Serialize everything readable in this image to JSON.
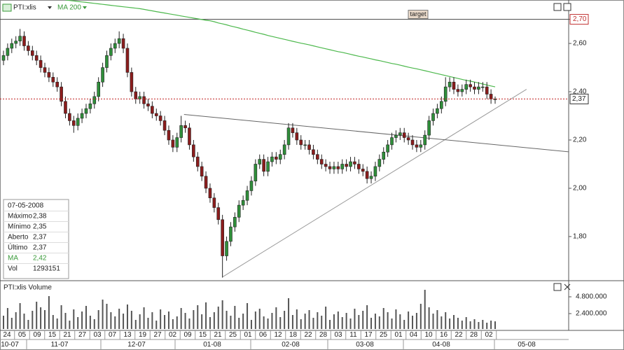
{
  "chart_data": {
    "type": "candlestick",
    "header": {
      "symbol": "PTI:xlis",
      "indicator": "MA 200"
    },
    "ylim": [
      1.62,
      2.78
    ],
    "yticks": [
      {
        "value": 2.7,
        "label": "2,70"
      },
      {
        "value": 2.6,
        "label": "2,60"
      },
      {
        "value": 2.4,
        "label": "2,40"
      },
      {
        "value": 2.2,
        "label": "2,20"
      },
      {
        "value": 2.0,
        "label": "2,00"
      },
      {
        "value": 1.8,
        "label": "1,80"
      }
    ],
    "target": {
      "label": "target",
      "value": 2.7
    },
    "price_marker": {
      "value": 2.37,
      "label": "2,37"
    },
    "up_color": "#2f8f3a",
    "down_color": "#8c1c1c",
    "open": [
      2.53,
      2.55,
      2.58,
      2.6,
      2.61,
      2.63,
      2.59,
      2.57,
      2.55,
      2.53,
      2.5,
      2.48,
      2.46,
      2.44,
      2.42,
      2.36,
      2.31,
      2.28,
      2.26,
      2.29,
      2.31,
      2.33,
      2.35,
      2.38,
      2.44,
      2.5,
      2.55,
      2.58,
      2.6,
      2.62,
      2.58,
      2.48,
      2.4,
      2.37,
      2.38,
      2.35,
      2.34,
      2.31,
      2.3,
      2.28,
      2.24,
      2.2,
      2.17,
      2.21,
      2.26,
      2.25,
      2.18,
      2.13,
      2.09,
      2.05,
      2.0,
      1.96,
      1.92,
      1.87,
      1.72,
      1.78,
      1.84,
      1.88,
      1.93,
      1.95,
      1.99,
      2.03,
      2.1,
      2.12,
      2.07,
      2.11,
      2.13,
      2.12,
      2.14,
      2.18,
      2.25,
      2.23,
      2.2,
      2.18,
      2.18,
      2.16,
      2.14,
      2.12,
      2.1,
      2.09,
      2.08,
      2.09,
      2.08,
      2.1,
      2.09,
      2.11,
      2.1,
      2.08,
      2.07,
      2.04,
      2.05,
      2.09,
      2.12,
      2.15,
      2.18,
      2.21,
      2.22,
      2.23,
      2.21,
      2.2,
      2.18,
      2.17,
      2.18,
      2.22,
      2.28,
      2.31,
      2.33,
      2.36,
      2.42,
      2.44,
      2.41,
      2.4,
      2.41,
      2.43,
      2.42,
      2.41,
      2.42,
      2.42,
      2.39,
      2.37
    ],
    "high": [
      2.57,
      2.6,
      2.62,
      2.63,
      2.66,
      2.65,
      2.61,
      2.59,
      2.57,
      2.55,
      2.52,
      2.5,
      2.48,
      2.46,
      2.44,
      2.38,
      2.33,
      2.3,
      2.31,
      2.33,
      2.35,
      2.37,
      2.4,
      2.46,
      2.52,
      2.57,
      2.6,
      2.62,
      2.65,
      2.64,
      2.6,
      2.5,
      2.42,
      2.4,
      2.4,
      2.37,
      2.36,
      2.33,
      2.32,
      2.3,
      2.26,
      2.22,
      2.23,
      2.3,
      2.28,
      2.27,
      2.2,
      2.15,
      2.11,
      2.07,
      2.02,
      1.98,
      1.94,
      1.89,
      1.8,
      1.86,
      1.9,
      1.95,
      1.97,
      2.01,
      2.05,
      2.12,
      2.14,
      2.14,
      2.13,
      2.15,
      2.15,
      2.16,
      2.2,
      2.27,
      2.27,
      2.25,
      2.22,
      2.2,
      2.2,
      2.18,
      2.16,
      2.14,
      2.12,
      2.11,
      2.11,
      2.11,
      2.12,
      2.12,
      2.13,
      2.13,
      2.12,
      2.1,
      2.09,
      2.07,
      2.11,
      2.14,
      2.17,
      2.2,
      2.23,
      2.24,
      2.25,
      2.25,
      2.23,
      2.22,
      2.2,
      2.2,
      2.24,
      2.3,
      2.33,
      2.35,
      2.38,
      2.46,
      2.46,
      2.46,
      2.43,
      2.43,
      2.45,
      2.45,
      2.44,
      2.44,
      2.44,
      2.44,
      2.41,
      2.38
    ],
    "low": [
      2.51,
      2.53,
      2.56,
      2.58,
      2.59,
      2.57,
      2.55,
      2.53,
      2.51,
      2.48,
      2.46,
      2.44,
      2.42,
      2.4,
      2.34,
      2.29,
      2.26,
      2.23,
      2.24,
      2.27,
      2.29,
      2.31,
      2.33,
      2.36,
      2.42,
      2.48,
      2.53,
      2.56,
      2.58,
      2.56,
      2.46,
      2.38,
      2.35,
      2.35,
      2.33,
      2.32,
      2.29,
      2.28,
      2.26,
      2.22,
      2.18,
      2.15,
      2.15,
      2.19,
      2.23,
      2.16,
      2.11,
      2.07,
      2.03,
      1.98,
      1.94,
      1.9,
      1.85,
      1.63,
      1.7,
      1.76,
      1.82,
      1.86,
      1.91,
      1.93,
      1.97,
      2.01,
      2.08,
      2.05,
      2.05,
      2.09,
      2.1,
      2.1,
      2.12,
      2.16,
      2.21,
      2.18,
      2.16,
      2.16,
      2.14,
      2.12,
      2.1,
      2.08,
      2.07,
      2.06,
      2.06,
      2.06,
      2.06,
      2.07,
      2.07,
      2.08,
      2.06,
      2.05,
      2.02,
      2.02,
      2.03,
      2.07,
      2.1,
      2.13,
      2.16,
      2.19,
      2.2,
      2.19,
      2.18,
      2.16,
      2.15,
      2.15,
      2.16,
      2.2,
      2.26,
      2.29,
      2.31,
      2.34,
      2.4,
      2.39,
      2.38,
      2.38,
      2.39,
      2.4,
      2.39,
      2.39,
      2.4,
      2.37,
      2.35,
      2.35
    ],
    "close": [
      2.55,
      2.58,
      2.6,
      2.61,
      2.63,
      2.59,
      2.57,
      2.55,
      2.53,
      2.5,
      2.48,
      2.46,
      2.44,
      2.42,
      2.36,
      2.31,
      2.28,
      2.26,
      2.29,
      2.31,
      2.33,
      2.35,
      2.38,
      2.44,
      2.5,
      2.55,
      2.58,
      2.6,
      2.62,
      2.58,
      2.48,
      2.4,
      2.37,
      2.38,
      2.35,
      2.34,
      2.31,
      2.3,
      2.28,
      2.24,
      2.2,
      2.17,
      2.21,
      2.26,
      2.25,
      2.18,
      2.13,
      2.09,
      2.05,
      2.0,
      1.96,
      1.92,
      1.87,
      1.72,
      1.78,
      1.84,
      1.88,
      1.93,
      1.95,
      1.99,
      2.03,
      2.1,
      2.12,
      2.07,
      2.11,
      2.13,
      2.12,
      2.14,
      2.18,
      2.25,
      2.23,
      2.2,
      2.18,
      2.18,
      2.16,
      2.14,
      2.12,
      2.1,
      2.09,
      2.08,
      2.09,
      2.08,
      2.1,
      2.09,
      2.11,
      2.1,
      2.08,
      2.07,
      2.04,
      2.05,
      2.09,
      2.12,
      2.15,
      2.18,
      2.21,
      2.22,
      2.23,
      2.21,
      2.2,
      2.18,
      2.17,
      2.18,
      2.22,
      2.28,
      2.31,
      2.33,
      2.36,
      2.42,
      2.44,
      2.41,
      2.4,
      2.41,
      2.43,
      2.42,
      2.41,
      2.42,
      2.42,
      2.39,
      2.37,
      2.37
    ],
    "ma": {
      "name": "MA 200",
      "color": "#4cb84c",
      "values": [
        null,
        null,
        null,
        null,
        null,
        null,
        null,
        null,
        null,
        null,
        null,
        null,
        null,
        null,
        null,
        2.78,
        2.778,
        2.776,
        2.774,
        2.772,
        2.77,
        2.768,
        2.766,
        2.764,
        2.762,
        2.76,
        2.758,
        2.756,
        2.754,
        2.752,
        2.75,
        2.748,
        2.746,
        2.744,
        2.741,
        2.738,
        2.735,
        2.732,
        2.729,
        2.726,
        2.723,
        2.72,
        2.717,
        2.714,
        2.711,
        2.708,
        2.705,
        2.702,
        2.699,
        2.696,
        2.694,
        2.69,
        2.685,
        2.681,
        2.677,
        2.672,
        2.668,
        2.664,
        2.659,
        2.655,
        2.651,
        2.646,
        2.642,
        2.638,
        2.633,
        2.629,
        2.625,
        2.621,
        2.617,
        2.613,
        2.609,
        2.605,
        2.601,
        2.598,
        2.594,
        2.59,
        2.586,
        2.582,
        2.578,
        2.574,
        2.57,
        2.566,
        2.563,
        2.559,
        2.555,
        2.551,
        2.547,
        2.544,
        2.54,
        2.536,
        2.532,
        2.529,
        2.525,
        2.521,
        2.517,
        2.514,
        2.51,
        2.506,
        2.502,
        2.498,
        2.495,
        2.491,
        2.487,
        2.483,
        2.479,
        2.475,
        2.471,
        2.467,
        2.463,
        2.459,
        2.455,
        2.451,
        2.447,
        2.444,
        2.44,
        2.436,
        2.432,
        2.428,
        2.424,
        2.42
      ]
    },
    "trendlines": [
      {
        "x": [
          53.05,
          126.6
        ],
        "y": [
          1.633,
          2.41
        ]
      },
      {
        "x": [
          43.7,
          136.8
        ],
        "y": [
          2.306,
          2.151
        ]
      }
    ],
    "volume": {
      "title": "PTI:xlis Volume",
      "ylim": [
        0,
        7000000
      ],
      "yticks": [
        {
          "value": 4800000,
          "label": "4.800.000"
        },
        {
          "value": 2400000,
          "label": "2.400.000"
        }
      ],
      "values": [
        2100000,
        3200000,
        1800000,
        2600000,
        3900000,
        2400000,
        1500000,
        2800000,
        4100000,
        3300000,
        2900000,
        4900000,
        2200000,
        1700000,
        3600000,
        2500000,
        1400000,
        3000000,
        1900000,
        2700000,
        3500000,
        2100000,
        1600000,
        2900000,
        4400000,
        3800000,
        2600000,
        2000000,
        3100000,
        2400000,
        3700000,
        2800000,
        1500000,
        2300000,
        3300000,
        1800000,
        2600000,
        1400000,
        3000000,
        2200000,
        2700000,
        1600000,
        2000000,
        3200000,
        2500000,
        1700000,
        2900000,
        3600000,
        2300000,
        4000000,
        1900000,
        2600000,
        3400000,
        4300000,
        2800000,
        2100000,
        3500000,
        1800000,
        2400000,
        3900000,
        1500000,
        2700000,
        3100000,
        2000000,
        1700000,
        2500000,
        3300000,
        1900000,
        2800000,
        4600000,
        2200000,
        3000000,
        1600000,
        2400000,
        2900000,
        1800000,
        2600000,
        2100000,
        3400000,
        1500000,
        2300000,
        2700000,
        1900000,
        2500000,
        1700000,
        3100000,
        2200000,
        2800000,
        3600000,
        1800000,
        2400000,
        2000000,
        3200000,
        2600000,
        1700000,
        3000000,
        2300000,
        1500000,
        2700000,
        2100000,
        2500000,
        3800000,
        5800000,
        3300000,
        2400000,
        2900000,
        2000000,
        2600000,
        1700000,
        2200000,
        1800000,
        1400000,
        1900000,
        1300000,
        1600000,
        1200000,
        1500000,
        1100000,
        1400000,
        1293151
      ]
    },
    "day_labels": [
      "24",
      "05",
      "09",
      "15",
      "21",
      "27",
      "03",
      "07",
      "13",
      "19",
      "27",
      "02",
      "09",
      "15",
      "21",
      "25",
      "01",
      "06",
      "12",
      "18",
      "22",
      "28",
      "03",
      "11",
      "17",
      "25",
      "01",
      "04",
      "10",
      "16",
      "22",
      "28",
      "02"
    ],
    "month_labels": [
      "10-07",
      "11-07",
      "12-07",
      "01-08",
      "02-08",
      "03-08",
      "04-08",
      "05-08"
    ],
    "info_box": {
      "date": "07-05-2008",
      "rows": [
        {
          "label": "Máximo",
          "value": "2,38"
        },
        {
          "label": "Mínimo",
          "value": "2,35"
        },
        {
          "label": "Aberto",
          "value": "2,37"
        },
        {
          "label": "Último",
          "value": "2,37"
        },
        {
          "label": "MA",
          "value": "2,42"
        },
        {
          "label": "Vol",
          "value": "1293151"
        }
      ]
    }
  }
}
